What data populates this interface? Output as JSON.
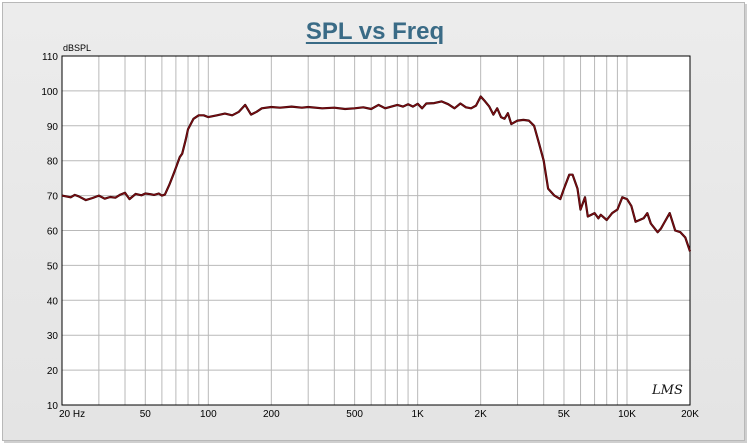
{
  "chart_data": {
    "type": "line",
    "title": "SPL vs Freq",
    "ylabel": "dBSPL",
    "xscale": "log",
    "xlim": [
      20,
      20000
    ],
    "ylim": [
      10,
      110
    ],
    "grid": true,
    "colors": {
      "line": "#7a0d12",
      "title": "#3a6b86",
      "grid": "#b9b9b9"
    },
    "y_ticks": [
      "10",
      "20",
      "30",
      "40",
      "50",
      "60",
      "70",
      "80",
      "90",
      "100",
      "110"
    ],
    "x_ticks": [
      {
        "value": 20,
        "label": "20  Hz"
      },
      {
        "value": 50,
        "label": "50"
      },
      {
        "value": 100,
        "label": "100"
      },
      {
        "value": 200,
        "label": "200"
      },
      {
        "value": 500,
        "label": "500"
      },
      {
        "value": 1000,
        "label": "1K"
      },
      {
        "value": 2000,
        "label": "2K"
      },
      {
        "value": 5000,
        "label": "5K"
      },
      {
        "value": 10000,
        "label": "10K"
      },
      {
        "value": 20000,
        "label": "20K"
      }
    ],
    "watermark": "LMS",
    "series": [
      {
        "x": [
          20,
          22,
          23,
          24,
          26,
          28,
          30,
          32,
          34,
          36,
          38,
          40,
          42,
          45,
          48,
          50,
          53,
          55,
          58,
          60,
          62,
          65,
          68,
          70,
          73,
          75,
          78,
          80,
          85,
          90,
          95,
          100,
          110,
          120,
          130,
          140,
          150,
          160,
          170,
          180,
          200,
          220,
          250,
          280,
          300,
          350,
          400,
          450,
          500,
          550,
          600,
          650,
          700,
          750,
          800,
          850,
          900,
          950,
          1000,
          1050,
          1100,
          1200,
          1300,
          1400,
          1500,
          1600,
          1700,
          1800,
          1900,
          2000,
          2100,
          2200,
          2300,
          2400,
          2500,
          2600,
          2700,
          2800,
          3000,
          3200,
          3400,
          3600,
          3800,
          4000,
          4200,
          4500,
          4800,
          5000,
          5300,
          5500,
          5800,
          6000,
          6300,
          6500,
          7000,
          7300,
          7500,
          8000,
          8500,
          9000,
          9500,
          10000,
          10500,
          11000,
          12000,
          12500,
          13000,
          14000,
          14500,
          15000,
          16000,
          17000,
          18000,
          19000,
          20000
        ],
        "y": [
          70,
          69.5,
          70.2,
          69.8,
          68.7,
          69.3,
          70,
          69.1,
          69.6,
          69.4,
          70.3,
          70.8,
          69,
          70.5,
          70.1,
          70.6,
          70.4,
          70.2,
          70.6,
          70,
          70.3,
          73,
          76,
          78,
          81,
          82,
          86,
          89,
          92,
          93,
          93,
          92.5,
          93,
          93.5,
          93,
          94,
          96,
          93.2,
          94,
          95,
          95.4,
          95.2,
          95.5,
          95.2,
          95.4,
          95,
          95.2,
          94.8,
          95,
          95.3,
          94.8,
          96,
          95,
          95.5,
          96,
          95.5,
          96.2,
          95.5,
          96.3,
          95,
          96.4,
          96.5,
          97,
          96.2,
          95,
          96.4,
          95.3,
          95,
          95.8,
          98.4,
          97,
          95.5,
          93.2,
          95,
          92.5,
          92,
          93.6,
          90.5,
          91.5,
          91.7,
          91.5,
          90,
          85,
          80,
          72,
          70,
          69,
          72,
          76,
          76,
          72,
          66,
          69.5,
          64,
          65,
          63.5,
          64.5,
          63,
          65,
          66,
          69.5,
          69,
          67,
          62.5,
          63.5,
          65,
          62,
          59.5,
          60.5,
          62,
          65,
          60,
          59.5,
          58,
          54
        ]
      }
    ]
  }
}
